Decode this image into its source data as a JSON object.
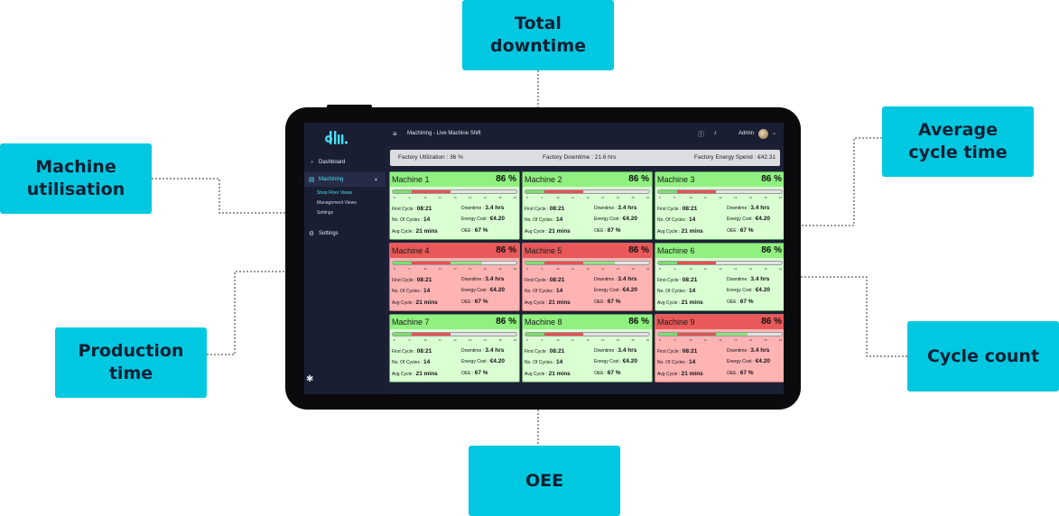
{
  "callouts": {
    "total_downtime": "Total\ndowntime",
    "average_cycle_time": "Average\ncycle time",
    "machine_utilisation": "Machine\nutilisation",
    "production_time": "Production\ntime",
    "cycle_count": "Cycle count",
    "oee": "OEE"
  },
  "header": {
    "title": "Machining - Live Machine Shift",
    "user": "Admin",
    "icons": [
      "menu-icon",
      "info-icon",
      "bell-icon",
      "chevron-down-icon"
    ]
  },
  "sidebar": {
    "logo": "dlli.",
    "items": [
      {
        "label": "Dashboard",
        "icon": "gauge-icon"
      },
      {
        "label": "Machining",
        "icon": "file-icon"
      },
      {
        "label": "Settings",
        "icon": "gear-icon"
      }
    ],
    "subitems": [
      "Shop Floor Views",
      "Management Views",
      "Settings"
    ],
    "bottom_icon": "bug-icon"
  },
  "stats": {
    "utilization": "Factory Utilization : 36 %",
    "downtime": "Factory Downtime : 21.6 hrs",
    "energy": "Factory Energy Spend : €42.31"
  },
  "labels": {
    "first_cycle": "First Cycle :",
    "downtime": "Downtime :",
    "num_cycles": "No. Of Cycles :",
    "energy_cost": "Energy Cost :",
    "avg_cycle": "Avg Cycle :",
    "oee": "OEE :"
  },
  "colors": {
    "accent": "#48e0f5",
    "callout": "#00c8e0",
    "green_head": "#90f080",
    "green_body": "#d9ffd3",
    "red_head": "#e95959",
    "red_body": "#ffb3b3"
  },
  "timeline_ticks": [
    "8",
    "9",
    "10",
    "11",
    "12",
    "13",
    "14",
    "15",
    "16"
  ],
  "machines": [
    {
      "name": "Machine 1",
      "pct": "86 %",
      "status": "green",
      "first_cycle": "08:21",
      "downtime": "3.4 hrs",
      "cycles": "14",
      "energy": "€4.20",
      "avg_cycle": "21 mins",
      "oee": "67 %"
    },
    {
      "name": "Machine 2",
      "pct": "86 %",
      "status": "green",
      "first_cycle": "08:21",
      "downtime": "3.4 hrs",
      "cycles": "14",
      "energy": "€4.20",
      "avg_cycle": "21 mins",
      "oee": "67 %"
    },
    {
      "name": "Machine 3",
      "pct": "86 %",
      "status": "green",
      "first_cycle": "08:21",
      "downtime": "3.4 hrs",
      "cycles": "14",
      "energy": "€4.20",
      "avg_cycle": "21 mins",
      "oee": "67 %"
    },
    {
      "name": "Machine 4",
      "pct": "86 %",
      "status": "red",
      "first_cycle": "08:21",
      "downtime": "3.4 hrs",
      "cycles": "14",
      "energy": "€4.20",
      "avg_cycle": "21 mins",
      "oee": "67 %"
    },
    {
      "name": "Machine 5",
      "pct": "86 %",
      "status": "red",
      "first_cycle": "08:21",
      "downtime": "3.4 hrs",
      "cycles": "14",
      "energy": "€4.20",
      "avg_cycle": "21 mins",
      "oee": "67 %"
    },
    {
      "name": "Machine 6",
      "pct": "86 %",
      "status": "green",
      "first_cycle": "08:21",
      "downtime": "3.4 hrs",
      "cycles": "14",
      "energy": "€4.20",
      "avg_cycle": "21 mins",
      "oee": "67 %"
    },
    {
      "name": "Machine 7",
      "pct": "86 %",
      "status": "green",
      "first_cycle": "08:21",
      "downtime": "3.4 hrs",
      "cycles": "14",
      "energy": "€4.20",
      "avg_cycle": "21 mins",
      "oee": "67 %"
    },
    {
      "name": "Machine 8",
      "pct": "86 %",
      "status": "green",
      "first_cycle": "08:21",
      "downtime": "3.4 hrs",
      "cycles": "14",
      "energy": "€4.20",
      "avg_cycle": "21 mins",
      "oee": "67 %"
    },
    {
      "name": "Machine 9",
      "pct": "86 %",
      "status": "red",
      "first_cycle": "08:21",
      "downtime": "3.4 hrs",
      "cycles": "14",
      "energy": "€4.20",
      "avg_cycle": "21 mins",
      "oee": "67 %"
    }
  ]
}
